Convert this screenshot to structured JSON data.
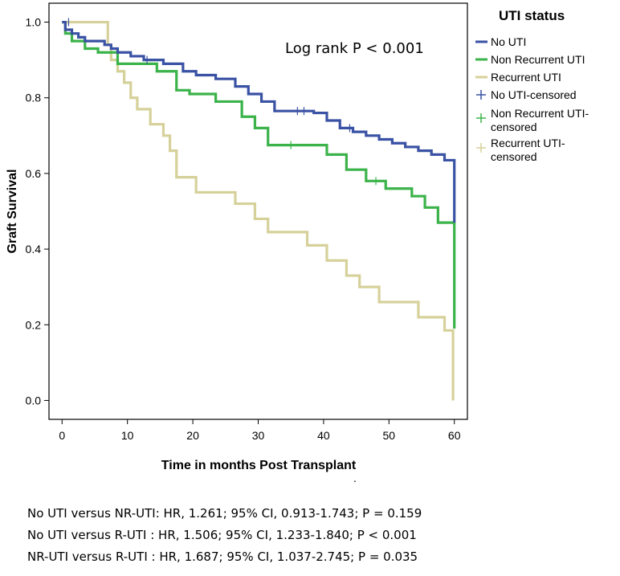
{
  "chart_data": {
    "type": "line",
    "step": true,
    "title": "",
    "xlabel": "Time in months Post Transplant",
    "ylabel": "Graft Survival",
    "xlim": [
      -2,
      62
    ],
    "ylim": [
      -0.05,
      1.05
    ],
    "x_ticks": [
      0,
      10,
      20,
      30,
      40,
      50,
      60
    ],
    "y_ticks": [
      0.0,
      0.2,
      0.4,
      0.6,
      0.8,
      1.0
    ],
    "x_tick_labels": [
      "0",
      "10",
      "20",
      "30",
      "40",
      "50",
      "60"
    ],
    "y_tick_labels": [
      "0.0",
      "0.2",
      "0.4",
      "0.6",
      "0.8",
      "1.0"
    ],
    "annotation": "Log rank P < 0.001",
    "legend": {
      "title": "UTI status",
      "position": "right",
      "entries": [
        {
          "label": "No UTI",
          "marker": "line",
          "color": "#3a52a4"
        },
        {
          "label": "Non Recurrent UTI",
          "marker": "line",
          "color": "#3bb34a"
        },
        {
          "label": "Recurrent UTI",
          "marker": "line",
          "color": "#d6d19a"
        },
        {
          "label": "No UTI-censored",
          "marker": "plus",
          "color": "#3a52a4"
        },
        {
          "label": "Non Recurrent UTI-censored",
          "marker": "plus",
          "color": "#3bb34a"
        },
        {
          "label": "Recurrent UTI-censored",
          "marker": "plus",
          "color": "#d6d19a"
        }
      ]
    },
    "series": [
      {
        "name": "No UTI",
        "color": "#3a52a4",
        "x": [
          0,
          0.5,
          1.5,
          2.5,
          3.5,
          6.5,
          7.5,
          8.5,
          10.5,
          12.5,
          15.5,
          18.5,
          20.5,
          23.5,
          26.5,
          28.5,
          30.5,
          32.5,
          38.5,
          40.5,
          42.5,
          44.5,
          46.5,
          48.5,
          50.5,
          52.5,
          54.5,
          56.5,
          58.5,
          60
        ],
        "y": [
          1.0,
          0.98,
          0.97,
          0.96,
          0.95,
          0.94,
          0.93,
          0.92,
          0.91,
          0.9,
          0.89,
          0.87,
          0.86,
          0.85,
          0.83,
          0.81,
          0.79,
          0.765,
          0.76,
          0.74,
          0.72,
          0.71,
          0.7,
          0.69,
          0.68,
          0.67,
          0.66,
          0.65,
          0.635,
          0.47
        ],
        "censored_x": [
          1,
          13,
          36,
          37,
          44
        ],
        "censored_y": [
          1.0,
          0.9,
          0.765,
          0.765,
          0.72
        ]
      },
      {
        "name": "Non Recurrent UTI",
        "color": "#3bb34a",
        "x": [
          0,
          0.5,
          1.5,
          3.5,
          5.5,
          8.5,
          14.5,
          17.5,
          19.5,
          23.5,
          27.5,
          29.5,
          31.5,
          40.5,
          43.5,
          46.5,
          49.5,
          53.5,
          55.5,
          57.5,
          60
        ],
        "y": [
          1.0,
          0.97,
          0.95,
          0.93,
          0.92,
          0.89,
          0.87,
          0.82,
          0.81,
          0.79,
          0.75,
          0.72,
          0.675,
          0.65,
          0.61,
          0.58,
          0.56,
          0.54,
          0.51,
          0.47,
          0.19
        ],
        "censored_x": [
          35,
          48
        ],
        "censored_y": [
          0.675,
          0.58
        ]
      },
      {
        "name": "Recurrent UTI",
        "color": "#d6d19a",
        "x": [
          0,
          7,
          7.5,
          8.5,
          9.5,
          10.5,
          11.5,
          13.5,
          15.5,
          16.5,
          17.5,
          20.5,
          26.5,
          29.5,
          31.5,
          37.5,
          40.5,
          43.5,
          45.5,
          48.5,
          54.5,
          58.5,
          59.8
        ],
        "y": [
          1.0,
          0.94,
          0.9,
          0.87,
          0.84,
          0.8,
          0.77,
          0.73,
          0.7,
          0.66,
          0.59,
          0.55,
          0.52,
          0.48,
          0.445,
          0.41,
          0.37,
          0.33,
          0.3,
          0.26,
          0.22,
          0.185,
          0.0
        ],
        "censored_x": [],
        "censored_y": []
      }
    ]
  },
  "footnotes": [
    "No UTI versus NR-UTI: HR, 1.261; 95% CI, 0.913-1.743; P = 0.159",
    "No UTI versus R-UTI  : HR, 1.506; 95% CI, 1.233-1.840; P < 0.001",
    "NR-UTI versus R-UTI  : HR, 1.687; 95% CI, 1.037-2.745; P = 0.035"
  ],
  "stray_mark": "."
}
